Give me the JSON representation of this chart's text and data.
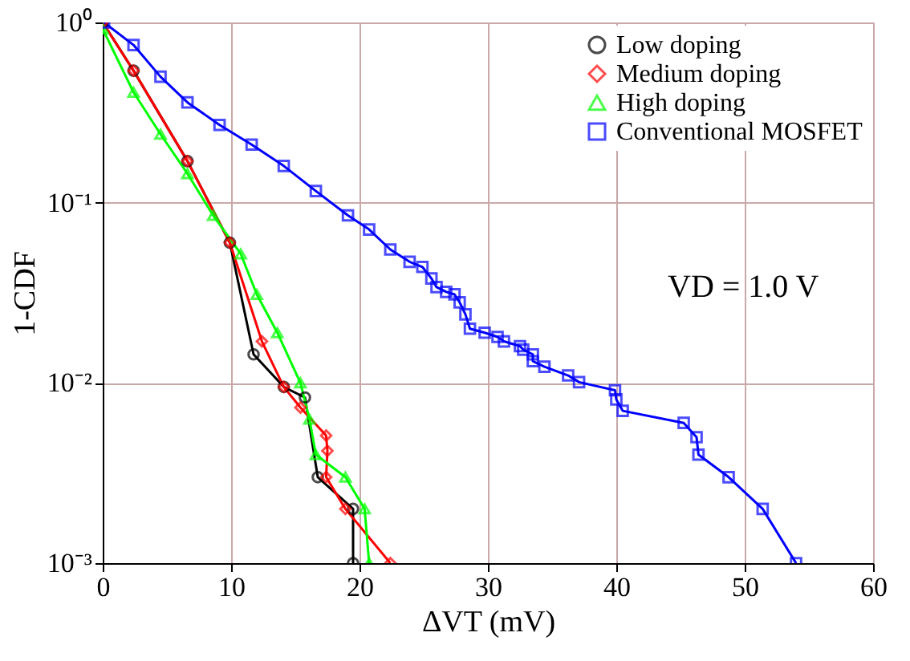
{
  "chart_data": {
    "type": "line",
    "xlabel": "ΔVT (mV)",
    "ylabel": "1-CDF",
    "log": "y",
    "grid": true,
    "legend": "top right",
    "line_style": "solid",
    "xlim": [
      0,
      60
    ],
    "xticks": [
      0,
      10,
      20,
      30,
      40,
      50,
      60
    ],
    "ylim": [
      0.001,
      1
    ],
    "yticks": [
      {
        "value": 0.001,
        "label": "10⁻³"
      },
      {
        "value": 0.01,
        "label": "10⁻²"
      },
      {
        "value": 0.1,
        "label": "10⁻¹"
      },
      {
        "value": 1,
        "label": "10⁰"
      }
    ],
    "annotations": [
      "VD = 1.0 V"
    ],
    "series": [
      {
        "name": "Low doping",
        "color": "#000000",
        "marker": "circle",
        "x": [
          0,
          2.4,
          6.6,
          9.9,
          11.75,
          14.1,
          15.75,
          16.75,
          19.5,
          19.5
        ],
        "values": [
          1,
          0.54,
          0.17,
          0.06,
          0.0144,
          0.0095,
          0.0083,
          0.003,
          0.002,
          0.001
        ]
      },
      {
        "name": "Medium doping",
        "color": "#ff0000",
        "marker": "diamond",
        "x": [
          0,
          2.4,
          6.6,
          9.9,
          12.4,
          14.1,
          15.4,
          17.4,
          17.5,
          17.4,
          18.9,
          22.4
        ],
        "values": [
          1,
          0.54,
          0.17,
          0.06,
          0.017,
          0.0095,
          0.0073,
          0.0051,
          0.0042,
          0.003,
          0.002,
          0.001
        ]
      },
      {
        "name": "High doping",
        "color": "#00ff00",
        "marker": "triangle",
        "x": [
          0,
          2.4,
          4.5,
          6.6,
          8.6,
          10.75,
          12,
          13.6,
          15.4,
          16.1,
          16.6,
          18.9,
          20.4,
          20.75
        ],
        "values": [
          0.92,
          0.41,
          0.24,
          0.145,
          0.085,
          0.052,
          0.031,
          0.019,
          0.01,
          0.0063,
          0.004,
          0.003,
          0.002,
          0.001
        ]
      },
      {
        "name": "Conventional MOSFET",
        "color": "#0000ff",
        "marker": "square",
        "x": [
          0.1,
          2.4,
          4.5,
          6.6,
          9.1,
          11.6,
          14.1,
          16.6,
          19.1,
          20.75,
          22.4,
          23.9,
          24.9,
          25.6,
          26,
          26.75,
          27.4,
          27.8,
          28.25,
          28.6,
          29.75,
          30.75,
          31.25,
          32.5,
          32.75,
          33.5,
          33.5,
          34.4,
          36.25,
          37.1,
          39.9,
          40,
          40.5,
          45.25,
          46.25,
          46.4,
          48.75,
          51.4,
          54
        ],
        "values": [
          1,
          0.75,
          0.5,
          0.36,
          0.27,
          0.21,
          0.16,
          0.116,
          0.085,
          0.071,
          0.055,
          0.047,
          0.044,
          0.038,
          0.034,
          0.032,
          0.031,
          0.028,
          0.024,
          0.02,
          0.019,
          0.018,
          0.017,
          0.016,
          0.0153,
          0.0144,
          0.0132,
          0.0123,
          0.011,
          0.0101,
          0.0091,
          0.0081,
          0.007,
          0.006,
          0.005,
          0.004,
          0.003,
          0.002,
          0.001
        ]
      }
    ]
  }
}
